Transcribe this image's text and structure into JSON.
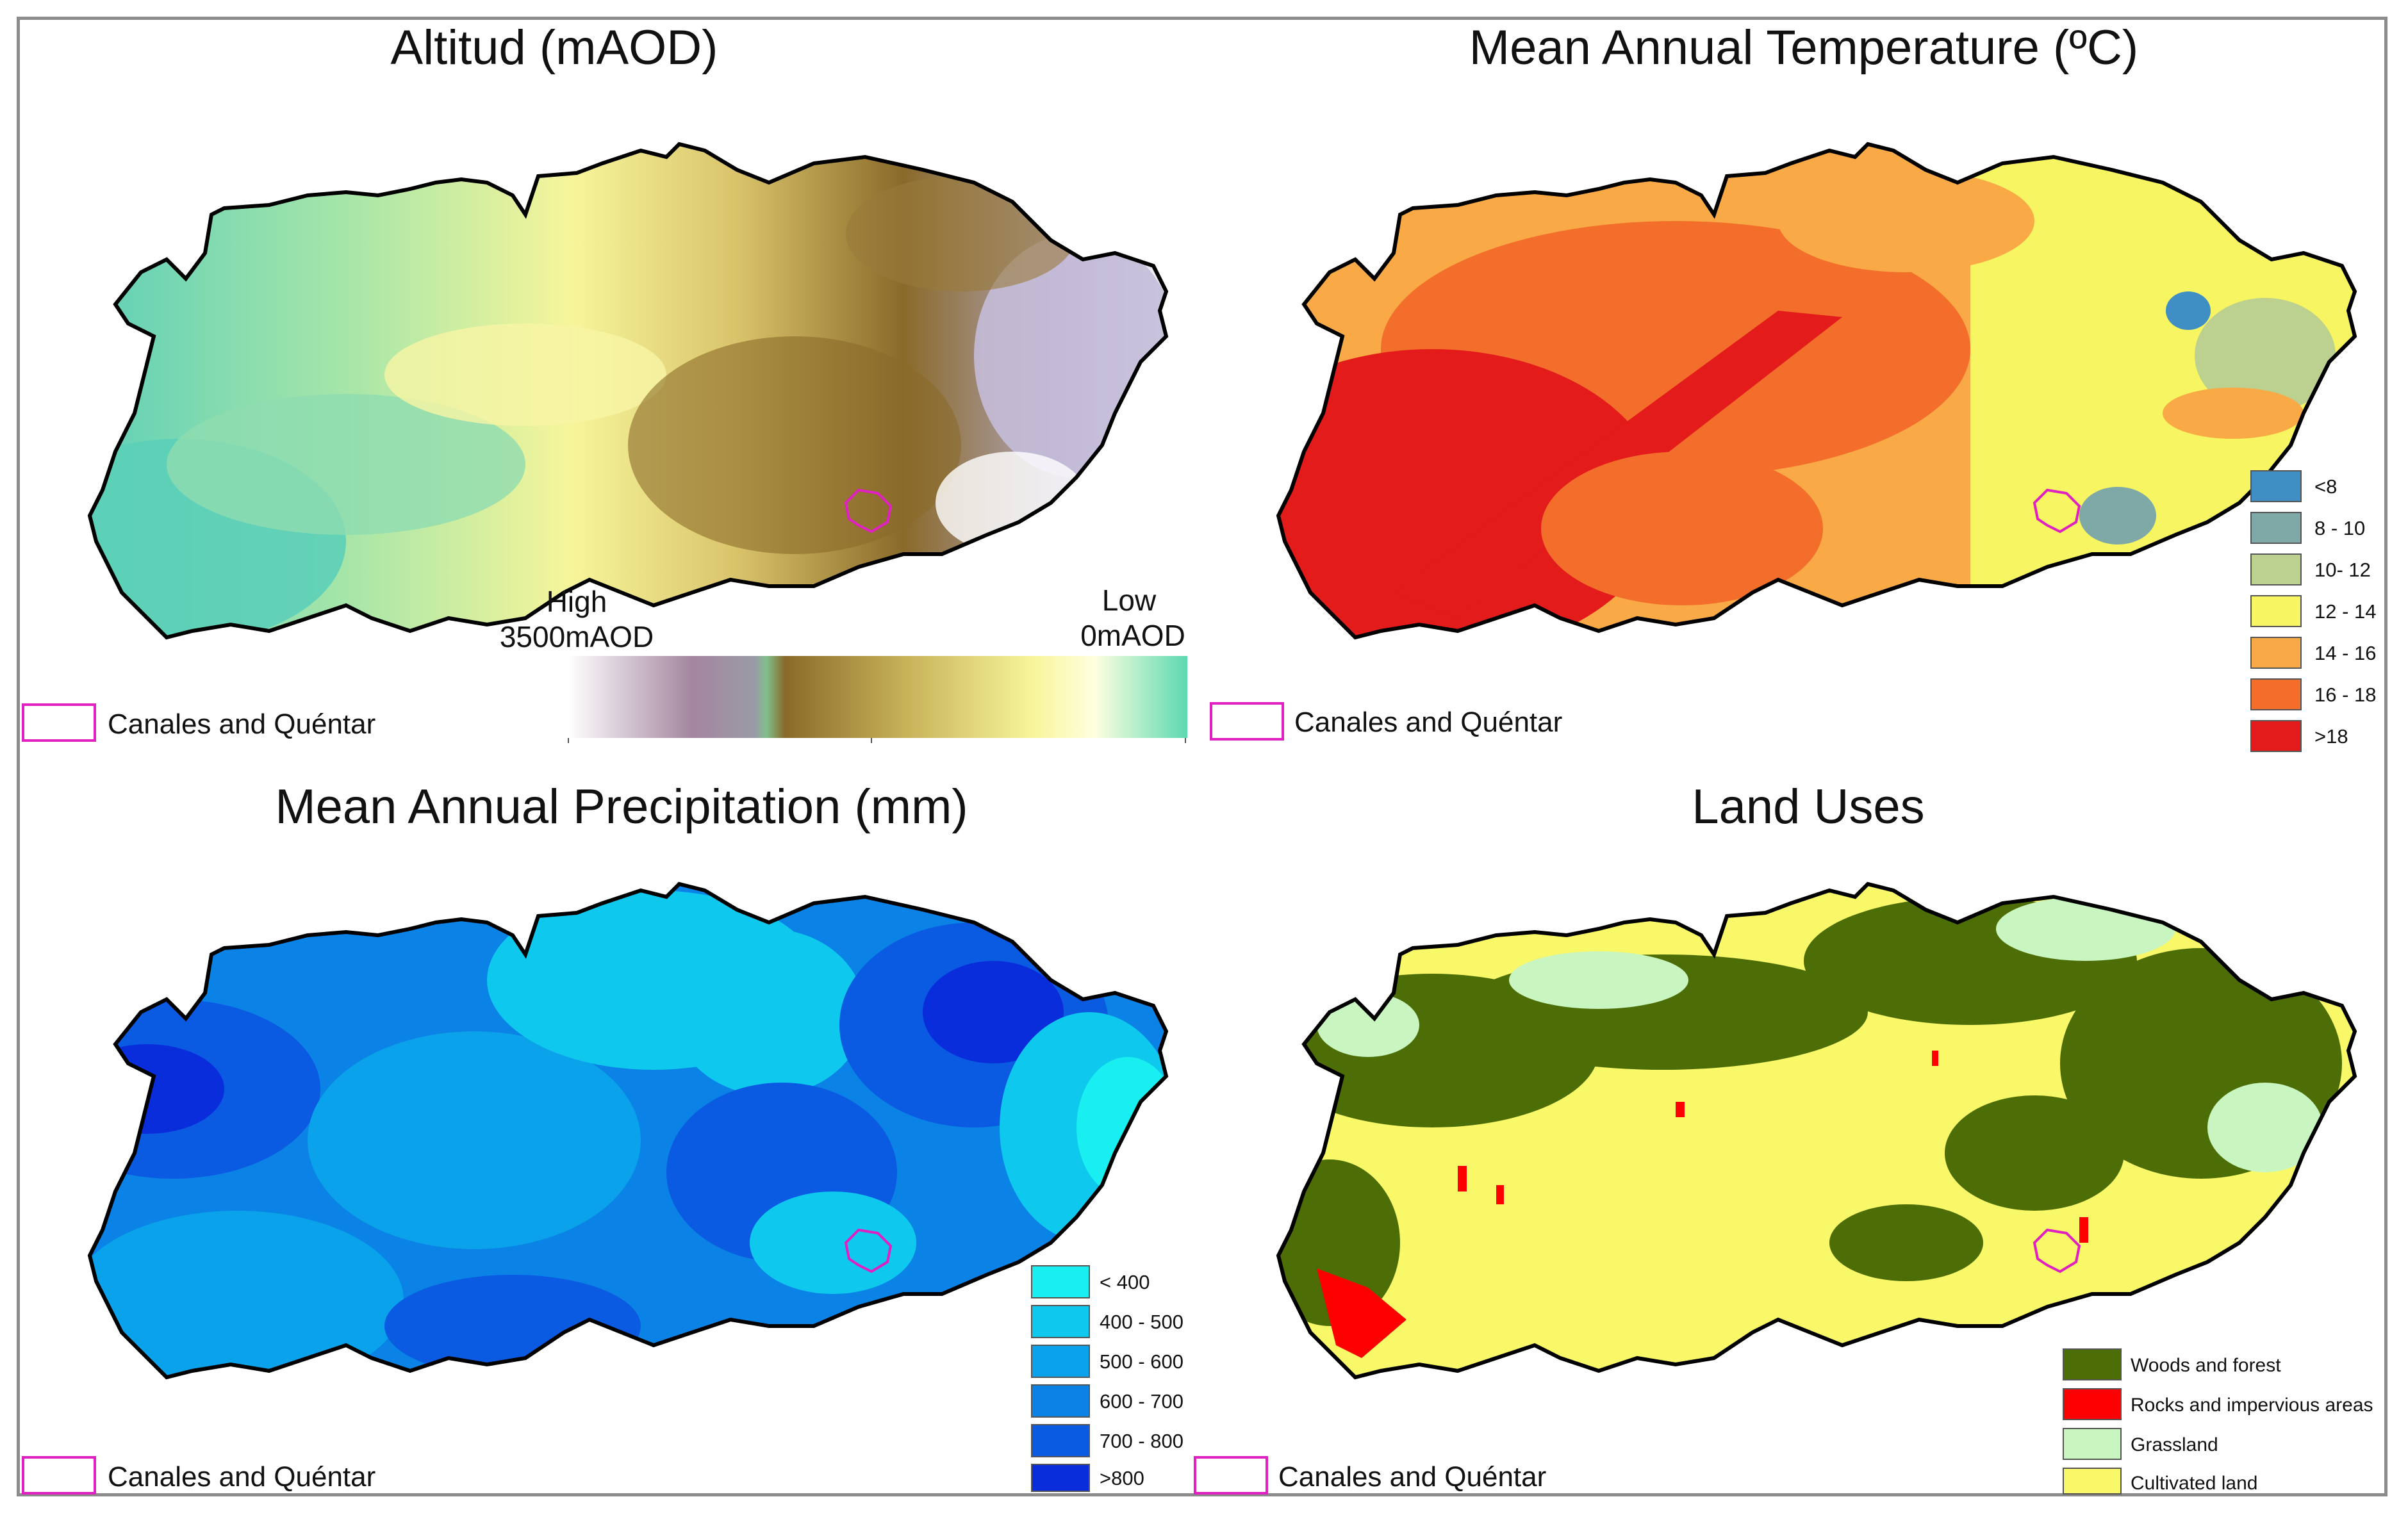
{
  "panels": {
    "altitude": {
      "title": "Altitud (mAOD)",
      "ramp": {
        "high_label": "High",
        "high_value": "3500mAOD",
        "low_label": "Low",
        "low_value": "0mAOD",
        "colors": [
          "#ffffff",
          "#a4869f",
          "#9a9aa6",
          "#7fbf8a",
          "#8a6a2a",
          "#c9b45a",
          "#f7f59a",
          "#ffffe0",
          "#5cd9b0"
        ]
      },
      "boundary_label": "Canales and Quéntar"
    },
    "temperature": {
      "title": "Mean Annual Temperature (ºC)",
      "legend": [
        {
          "label": "<8",
          "color": "#3f8fc4"
        },
        {
          "label": "8 - 10",
          "color": "#7fa9a6"
        },
        {
          "label": "10- 12",
          "color": "#bcd08f"
        },
        {
          "label": "12 - 14",
          "color": "#f7f562"
        },
        {
          "label": "14 - 16",
          "color": "#f9aa46"
        },
        {
          "label": "16 - 18",
          "color": "#f26e2a"
        },
        {
          "label": ">18",
          "color": "#e31b1b"
        }
      ],
      "boundary_label": "Canales and Quéntar"
    },
    "precipitation": {
      "title": "Mean Annual Precipitation (mm)",
      "legend": [
        {
          "label": "< 400",
          "color": "#19eef0"
        },
        {
          "label": "400 - 500",
          "color": "#0fc8ee"
        },
        {
          "label": "500 - 600",
          "color": "#0aa2ea"
        },
        {
          "label": "600 - 700",
          "color": "#0a82e6"
        },
        {
          "label": "700 - 800",
          "color": "#0a5ae2"
        },
        {
          "label": ">800",
          "color": "#0a2ddc"
        }
      ],
      "boundary_label": "Canales and Quéntar"
    },
    "land_uses": {
      "title": "Land Uses",
      "legend": [
        {
          "label": "Woods and forest",
          "color": "#4d6e07"
        },
        {
          "label": "Rocks and impervious areas",
          "color": "#ff0000"
        },
        {
          "label": "Grassland",
          "color": "#c8f5c0"
        },
        {
          "label": "Cultivated land",
          "color": "#f8f868"
        }
      ],
      "boundary_label": "Canales and Quéntar"
    }
  },
  "colors": {
    "outline": "#000000",
    "boundary": "#e020c0",
    "frame": "#8c8c8c"
  }
}
